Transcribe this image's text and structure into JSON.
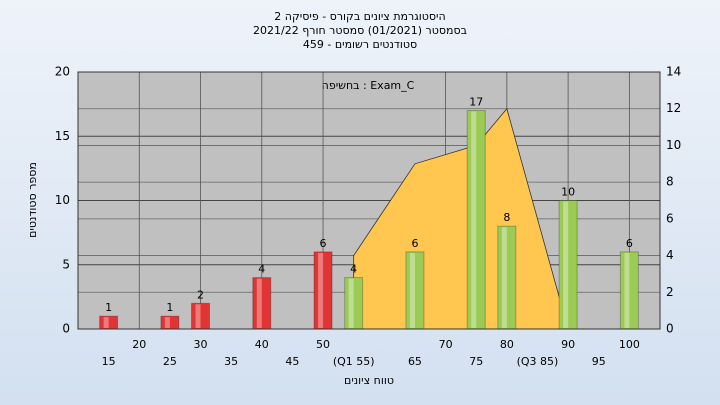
{
  "chart_data": {
    "type": "bar",
    "title": [
      "היסטוגרמת ציונים בקורס - פיסיקה 2",
      "בסמסטר  (01/2021)  סמסטר חורף 2021/22",
      "סטודנטים רשומים - 459"
    ],
    "annotation": "בחשיפה : Exam_C",
    "xlabel": "טווח ציונים",
    "ylabel": "מספר סטודנטים",
    "xlim": [
      10,
      105
    ],
    "xticks": [
      15,
      20,
      25,
      30,
      35,
      40,
      45,
      50,
      {
        "value": 55,
        "label": "(Q1 55)"
      },
      65,
      70,
      75,
      80,
      {
        "value": 85,
        "label": "(Q3 85)"
      },
      90,
      95,
      100
    ],
    "ylim": [
      0,
      20
    ],
    "yticks": [
      0,
      5,
      10,
      15,
      20
    ],
    "y2lim": [
      0,
      14
    ],
    "y2ticks": [
      0,
      2,
      4,
      6,
      8,
      10,
      12,
      14
    ],
    "grid": true,
    "series": [
      {
        "type": "area",
        "axis": "y2",
        "color": "#ffc74f",
        "x": [
          55,
          65,
          75,
          80,
          90
        ],
        "values": [
          4,
          9,
          10,
          12,
          0
        ]
      },
      {
        "type": "bar",
        "color": "#e23434",
        "x": [
          15,
          25,
          30,
          40,
          50
        ],
        "values": [
          1,
          1,
          2,
          4,
          6
        ]
      },
      {
        "type": "bar",
        "color": "#9ccb55",
        "x": [
          55,
          65,
          75,
          80,
          90,
          100
        ],
        "values": [
          4,
          6,
          17,
          8,
          10,
          6
        ]
      }
    ]
  }
}
